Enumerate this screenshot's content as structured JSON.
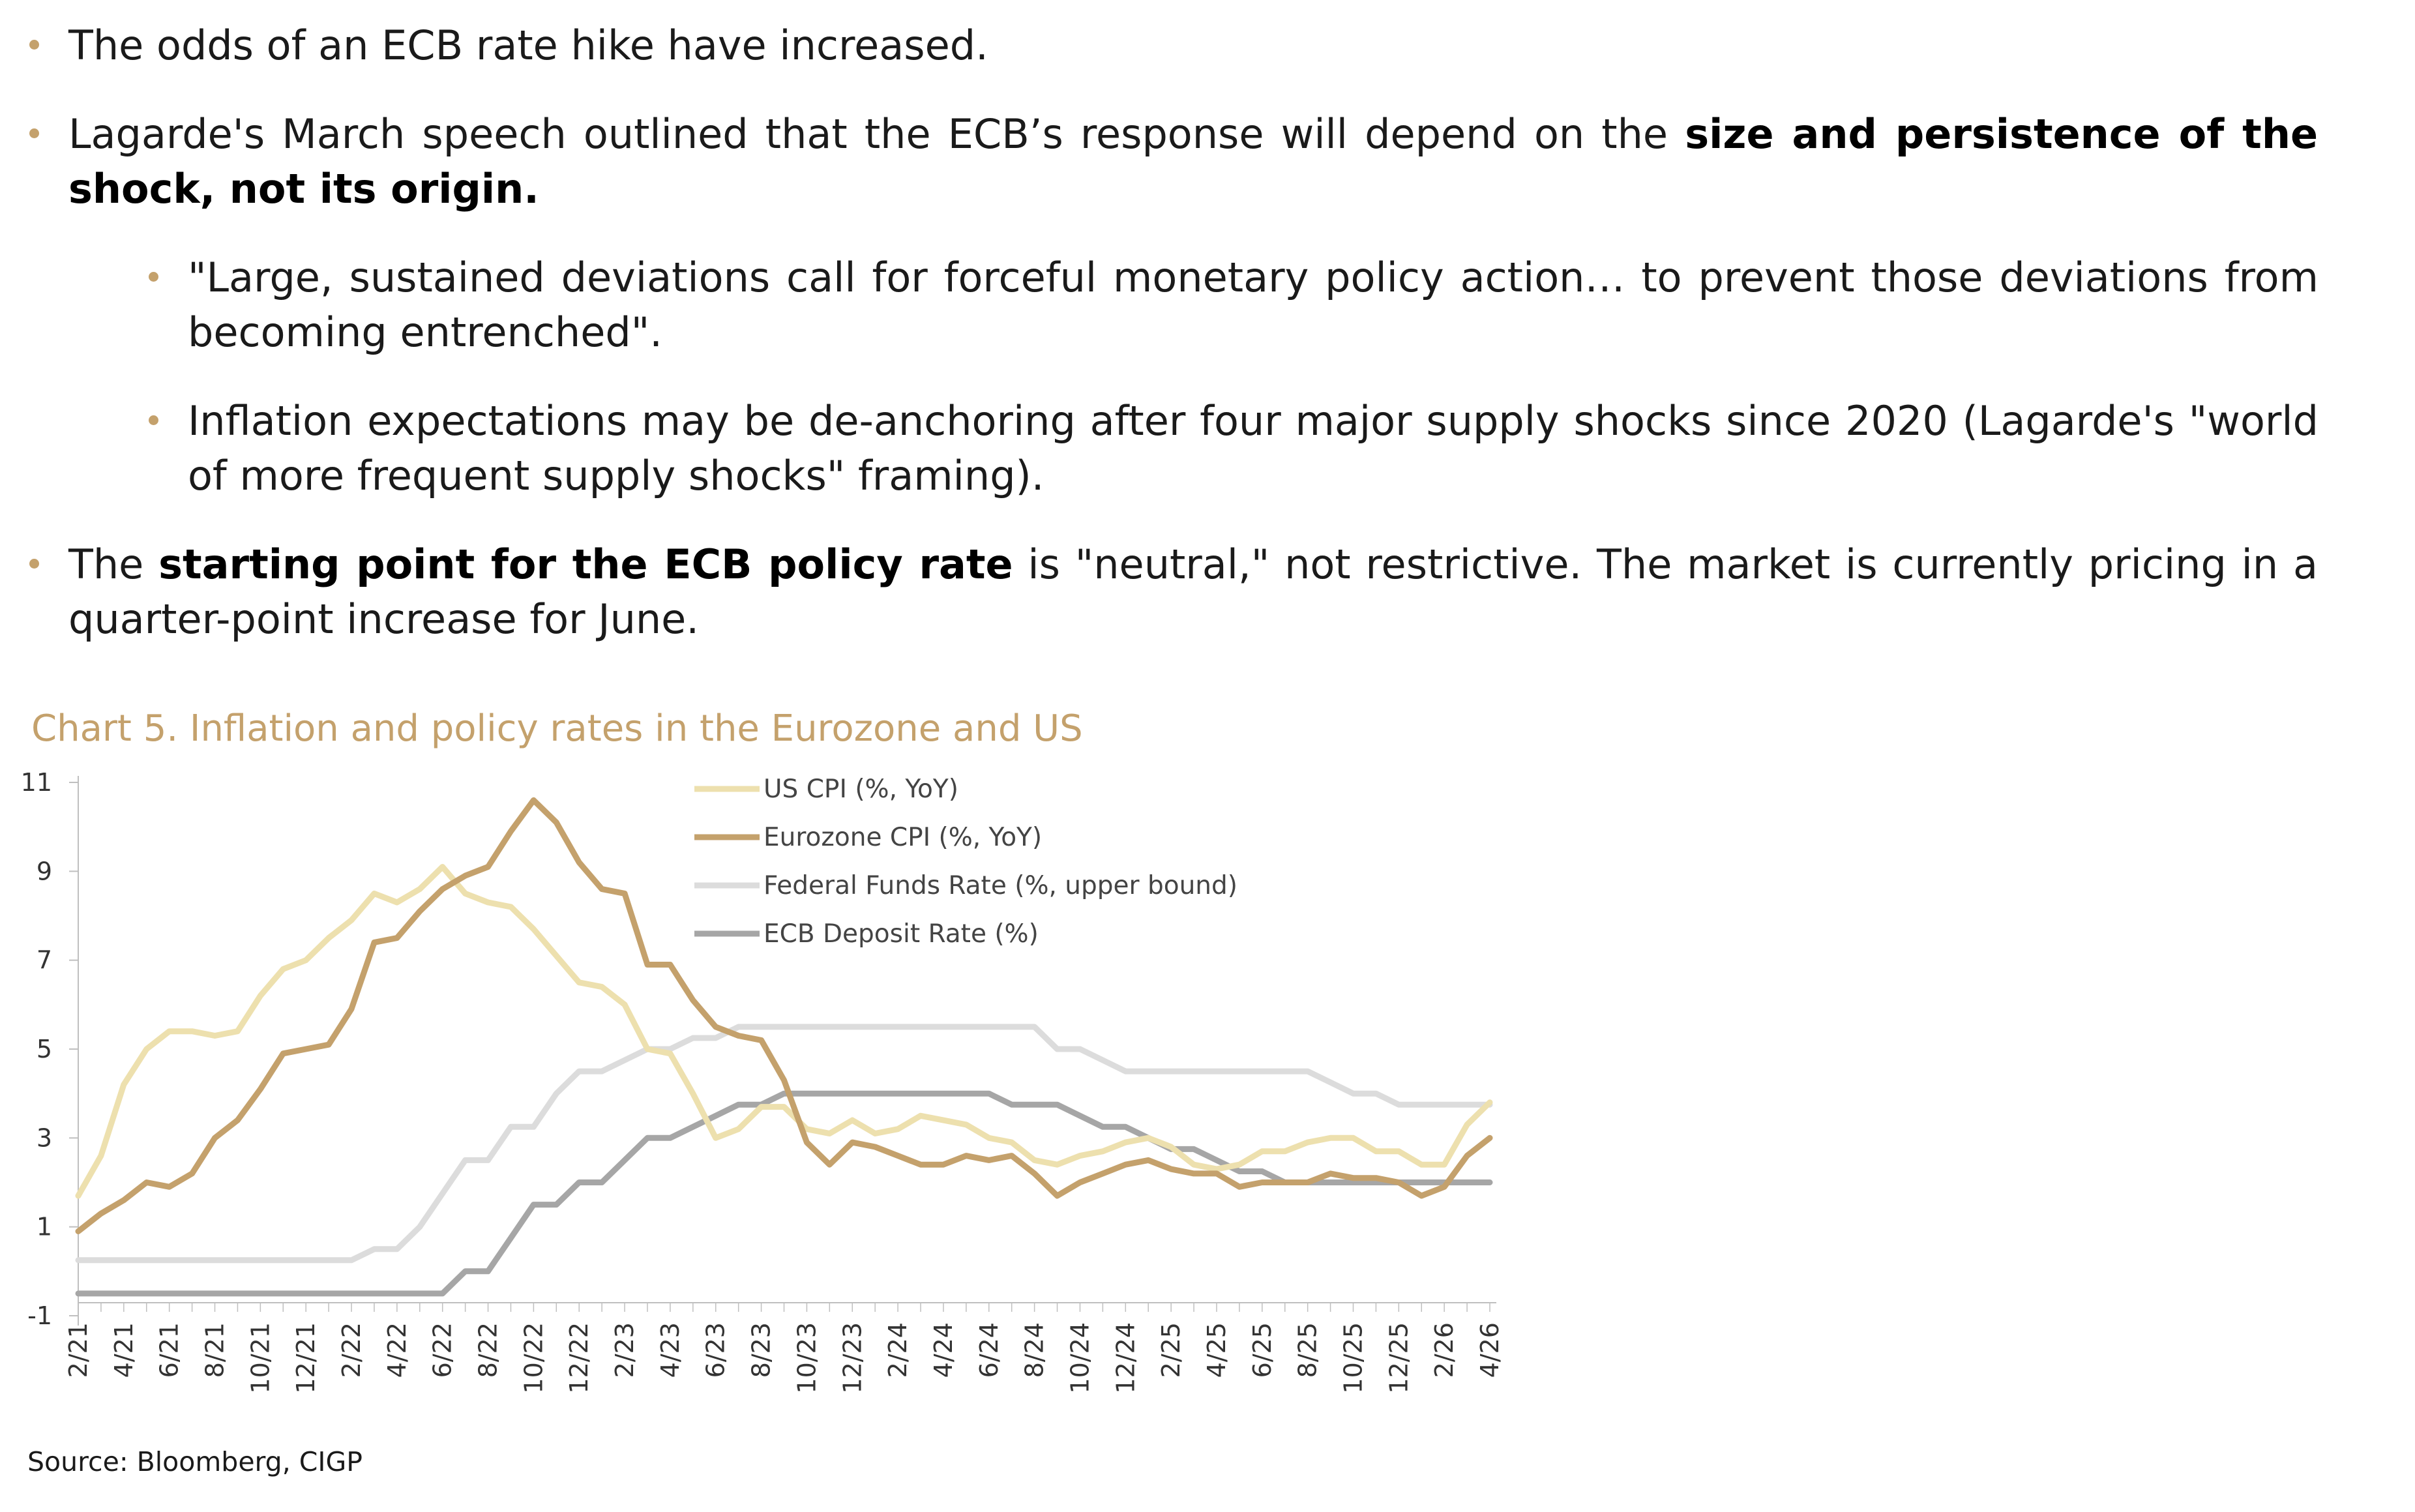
{
  "bullets": {
    "b1": {
      "text": "The odds of an ECB rate hike have increased."
    },
    "b2": {
      "pre": "Lagarde's March speech outlined that the ECB’s response will depend on the ",
      "strong": "size and persistence of the shock, not its origin.",
      "post": ""
    },
    "b3": {
      "text": "\"Large, sustained deviations call for forceful monetary policy action… to prevent those deviations from becoming entrenched\"."
    },
    "b4": {
      "text": "Inflation expectations may be de-anchoring after four major supply shocks since 2020 (Lagarde's \"world of more frequent supply shocks\" framing)."
    },
    "b5": {
      "pre": "The ",
      "strong": "starting point for the ECB policy rate",
      "post": " is \"neutral,\" not restrictive. The market is currently pricing in a quarter-point increase for June."
    }
  },
  "source": "Source: Bloomberg, CIGP",
  "chart_data": {
    "type": "line",
    "title": "Chart 5. Inflation and policy rates in the Eurozone and US",
    "ylim": [
      -1,
      11
    ],
    "yticks": [
      11,
      9,
      7,
      5,
      3,
      1,
      -1
    ],
    "legend_position": "top-center",
    "grid": false,
    "x": [
      "2/21",
      "3/21",
      "4/21",
      "5/21",
      "6/21",
      "7/21",
      "8/21",
      "9/21",
      "10/21",
      "11/21",
      "12/21",
      "1/22",
      "2/22",
      "3/22",
      "4/22",
      "5/22",
      "6/22",
      "7/22",
      "8/22",
      "9/22",
      "10/22",
      "11/22",
      "12/22",
      "1/23",
      "2/23",
      "3/23",
      "4/23",
      "5/23",
      "6/23",
      "7/23",
      "8/23",
      "9/23",
      "10/23",
      "11/23",
      "12/23",
      "1/24",
      "2/24",
      "3/24",
      "4/24",
      "5/24",
      "6/24",
      "7/24",
      "8/24",
      "9/24",
      "10/24",
      "11/24",
      "12/24",
      "1/25",
      "2/25",
      "3/25",
      "4/25",
      "5/25",
      "6/25",
      "7/25",
      "8/25",
      "9/25",
      "10/25",
      "11/25",
      "12/25",
      "1/26",
      "2/26",
      "3/26",
      "4/26"
    ],
    "xtick_labels": [
      "2/21",
      "4/21",
      "6/21",
      "8/21",
      "10/21",
      "12/21",
      "2/22",
      "4/22",
      "6/22",
      "8/22",
      "10/22",
      "12/22",
      "2/23",
      "4/23",
      "6/23",
      "8/23",
      "10/23",
      "12/23",
      "2/24",
      "4/24",
      "6/24",
      "8/24",
      "10/24",
      "12/24",
      "2/25",
      "4/25",
      "6/25",
      "8/25",
      "10/25",
      "12/25",
      "2/26",
      "4/26"
    ],
    "series": [
      {
        "name": "US CPI (%, YoY)",
        "color": "#ede0ae",
        "values": [
          1.7,
          2.6,
          4.2,
          5.0,
          5.4,
          5.4,
          5.3,
          5.4,
          6.2,
          6.8,
          7.0,
          7.5,
          7.9,
          8.5,
          8.3,
          8.6,
          9.1,
          8.5,
          8.3,
          8.2,
          7.7,
          7.1,
          6.5,
          6.4,
          6.0,
          5.0,
          4.9,
          4.0,
          3.0,
          3.2,
          3.7,
          3.7,
          3.2,
          3.1,
          3.4,
          3.1,
          3.2,
          3.5,
          3.4,
          3.3,
          3.0,
          2.9,
          2.5,
          2.4,
          2.6,
          2.7,
          2.9,
          3.0,
          2.8,
          2.4,
          2.3,
          2.4,
          2.7,
          2.7,
          2.9,
          3.0,
          3.0,
          2.7,
          2.7,
          2.4,
          2.4,
          3.3,
          3.8
        ]
      },
      {
        "name": "Eurozone CPI (%, YoY)",
        "color": "#c4a16c",
        "values": [
          0.9,
          1.3,
          1.6,
          2.0,
          1.9,
          2.2,
          3.0,
          3.4,
          4.1,
          4.9,
          5.0,
          5.1,
          5.9,
          7.4,
          7.5,
          8.1,
          8.6,
          8.9,
          9.1,
          9.9,
          10.6,
          10.1,
          9.2,
          8.6,
          8.5,
          6.9,
          6.9,
          6.1,
          5.5,
          5.3,
          5.2,
          4.3,
          2.9,
          2.4,
          2.9,
          2.8,
          2.6,
          2.4,
          2.4,
          2.6,
          2.5,
          2.6,
          2.2,
          1.7,
          2.0,
          2.2,
          2.4,
          2.5,
          2.3,
          2.2,
          2.2,
          1.9,
          2.0,
          2.0,
          2.0,
          2.2,
          2.1,
          2.1,
          2.0,
          1.7,
          1.9,
          2.6,
          3.0
        ]
      },
      {
        "name": "Federal Funds Rate (%, upper bound)",
        "color": "#dcdcdc",
        "values": [
          0.25,
          0.25,
          0.25,
          0.25,
          0.25,
          0.25,
          0.25,
          0.25,
          0.25,
          0.25,
          0.25,
          0.25,
          0.25,
          0.5,
          0.5,
          1.0,
          1.75,
          2.5,
          2.5,
          3.25,
          3.25,
          4.0,
          4.5,
          4.5,
          4.75,
          5.0,
          5.0,
          5.25,
          5.25,
          5.5,
          5.5,
          5.5,
          5.5,
          5.5,
          5.5,
          5.5,
          5.5,
          5.5,
          5.5,
          5.5,
          5.5,
          5.5,
          5.5,
          5.0,
          5.0,
          4.75,
          4.5,
          4.5,
          4.5,
          4.5,
          4.5,
          4.5,
          4.5,
          4.5,
          4.5,
          4.25,
          4.0,
          4.0,
          3.75,
          3.75,
          3.75,
          3.75,
          3.75
        ]
      },
      {
        "name": "ECB Deposit Rate (%)",
        "color": "#a6a6a6",
        "values": [
          -0.5,
          -0.5,
          -0.5,
          -0.5,
          -0.5,
          -0.5,
          -0.5,
          -0.5,
          -0.5,
          -0.5,
          -0.5,
          -0.5,
          -0.5,
          -0.5,
          -0.5,
          -0.5,
          -0.5,
          0.0,
          0.0,
          0.75,
          1.5,
          1.5,
          2.0,
          2.0,
          2.5,
          3.0,
          3.0,
          3.25,
          3.5,
          3.75,
          3.75,
          4.0,
          4.0,
          4.0,
          4.0,
          4.0,
          4.0,
          4.0,
          4.0,
          4.0,
          4.0,
          3.75,
          3.75,
          3.75,
          3.5,
          3.25,
          3.25,
          3.0,
          2.75,
          2.75,
          2.5,
          2.25,
          2.25,
          2.0,
          2.0,
          2.0,
          2.0,
          2.0,
          2.0,
          2.0,
          2.0,
          2.0,
          2.0
        ]
      }
    ]
  }
}
